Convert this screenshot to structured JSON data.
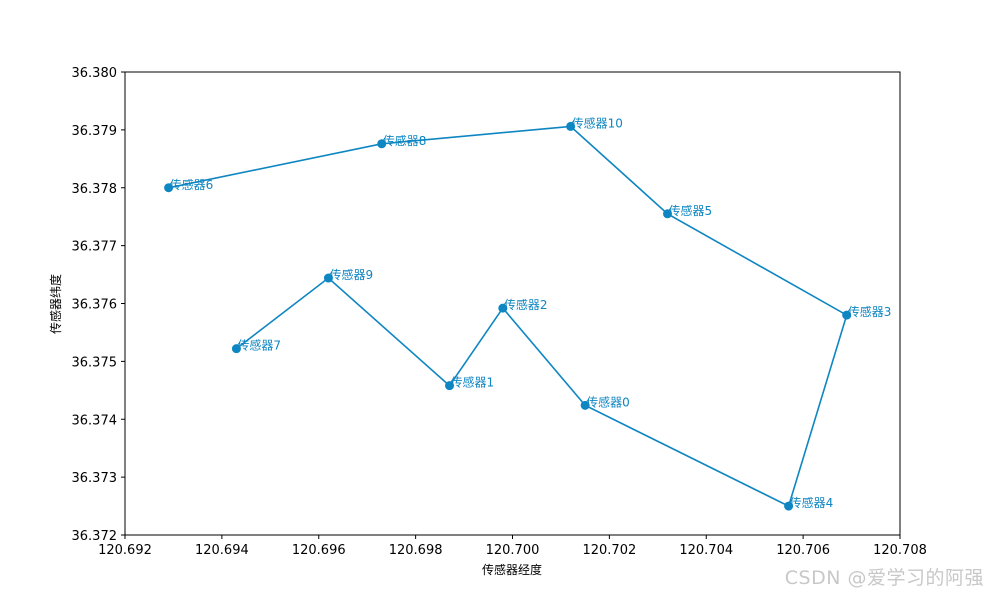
{
  "chart_data": {
    "type": "line",
    "title": "",
    "xlabel": "传感器经度",
    "ylabel": "传感器纬度",
    "xlim": [
      120.692,
      120.708
    ],
    "ylim": [
      36.372,
      36.38
    ],
    "xticks": [
      "120.692",
      "120.694",
      "120.696",
      "120.698",
      "120.700",
      "120.702",
      "120.704",
      "120.706",
      "120.708"
    ],
    "yticks": [
      "36.372",
      "36.373",
      "36.374",
      "36.375",
      "36.376",
      "36.377",
      "36.378",
      "36.379",
      "36.380"
    ],
    "grid": false,
    "line_color": "#0e86c2",
    "label_color": "#0e86c2",
    "marker": "circle",
    "path": [
      {
        "label": "传感器6",
        "x": 120.6929,
        "y": 36.378
      },
      {
        "label": "传感器8",
        "x": 120.6973,
        "y": 36.37876
      },
      {
        "label": "传感器10",
        "x": 120.7012,
        "y": 36.37906
      },
      {
        "label": "传感器5",
        "x": 120.7032,
        "y": 36.37755
      },
      {
        "label": "传感器3",
        "x": 120.7069,
        "y": 36.3758
      },
      {
        "label": "传感器4",
        "x": 120.7057,
        "y": 36.3725
      },
      {
        "label": "传感器0",
        "x": 120.7015,
        "y": 36.37424
      },
      {
        "label": "传感器2",
        "x": 120.6998,
        "y": 36.37592
      },
      {
        "label": "传感器1",
        "x": 120.6987,
        "y": 36.37458
      },
      {
        "label": "传感器9",
        "x": 120.6962,
        "y": 36.37644
      },
      {
        "label": "传感器7",
        "x": 120.6943,
        "y": 36.37522
      }
    ]
  },
  "watermark": "CSDN @爱学习的阿强"
}
